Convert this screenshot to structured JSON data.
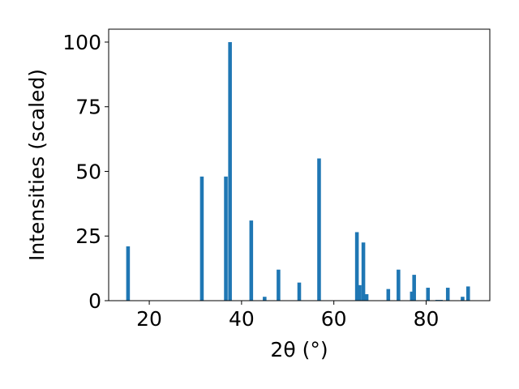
{
  "chart_data": {
    "type": "bar",
    "xlabel": "2θ (°)",
    "ylabel": "Intensities (scaled)",
    "xlim": [
      11.2,
      93.8
    ],
    "ylim": [
      0,
      105
    ],
    "x_ticks": [
      20,
      40,
      60,
      80
    ],
    "y_ticks": [
      0,
      25,
      50,
      75,
      100
    ],
    "bar_width": 0.8,
    "bar_color": "#1f77b4",
    "grid": false,
    "x": [
      15.4,
      31.4,
      36.6,
      37.5,
      42.1,
      45.0,
      48.0,
      52.5,
      56.8,
      65.0,
      65.6,
      66.4,
      67.1,
      71.8,
      74.0,
      76.9,
      77.4,
      80.4,
      82.4,
      83.2,
      84.7,
      87.9,
      89.1
    ],
    "values": [
      21,
      48,
      48,
      100,
      31,
      1.5,
      12,
      7,
      55,
      26.5,
      6,
      22.5,
      2.5,
      4.5,
      12,
      3.5,
      10,
      5,
      0.3,
      0.3,
      5,
      1.5,
      5.5
    ]
  }
}
